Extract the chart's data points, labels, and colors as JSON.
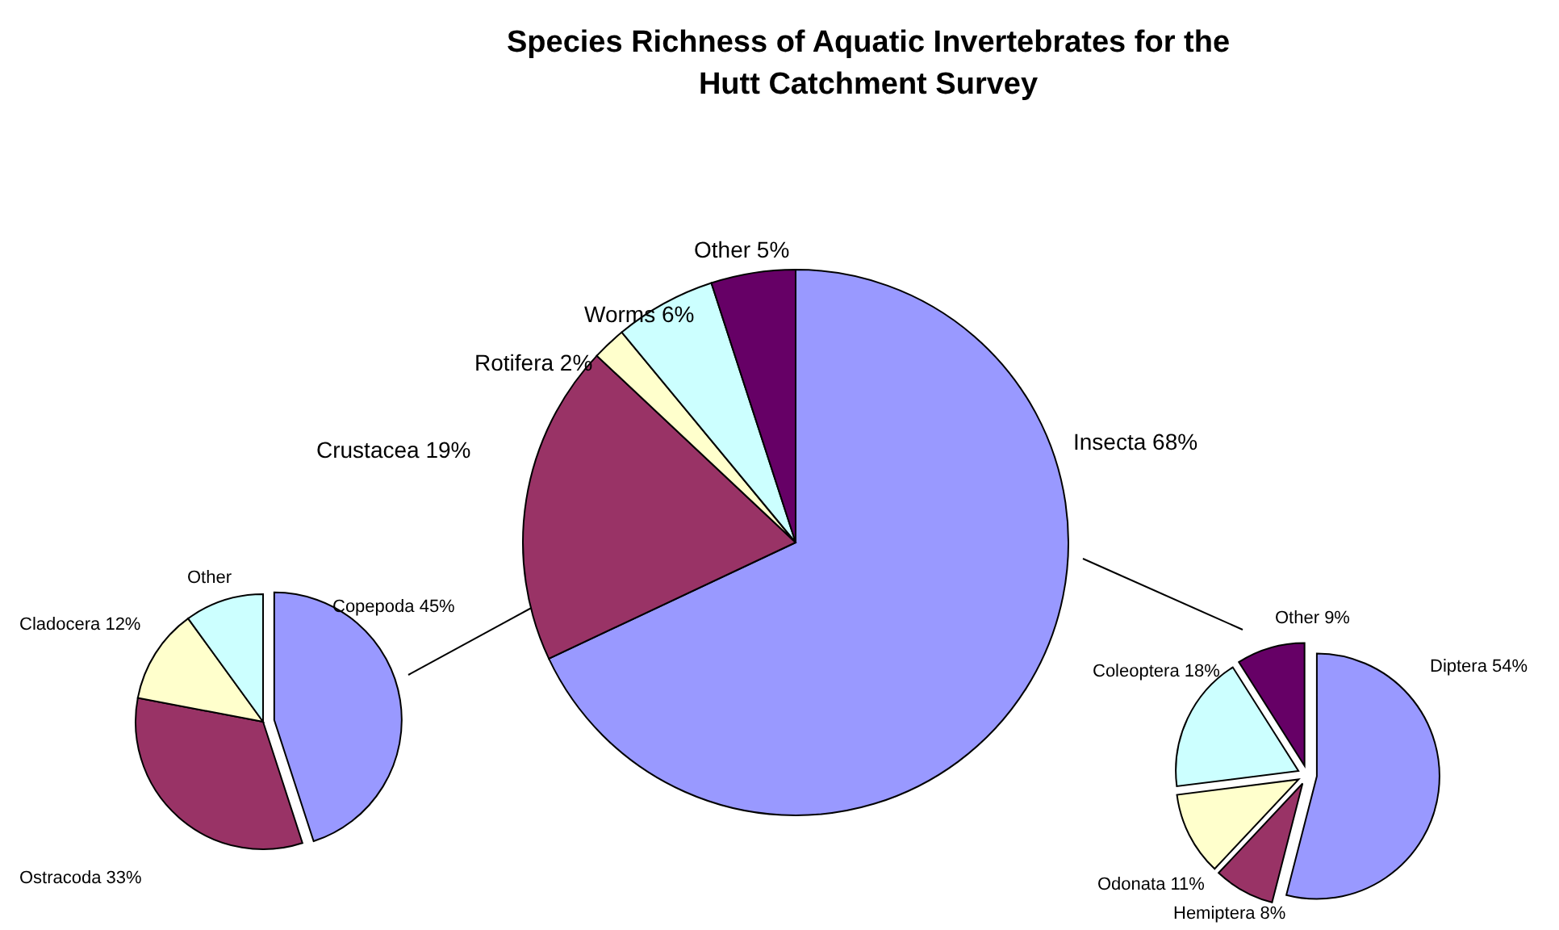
{
  "chart_data": [
    {
      "type": "pie",
      "title": "Species Richness of Aquatic Invertebrates for the Hutt Catchment Survey",
      "categories": [
        "Insecta",
        "Crustacea",
        "Rotifera",
        "Worms",
        "Other"
      ],
      "values": [
        68,
        19,
        2,
        6,
        5
      ],
      "value_labels": [
        "68%",
        "19%",
        "2%",
        "6%",
        "5%"
      ],
      "colors": [
        "#9999ff",
        "#993366",
        "#ffffcc",
        "#ccffff",
        "#660066"
      ]
    },
    {
      "type": "pie",
      "categories": [
        "Copepoda",
        "Ostracoda",
        "Cladocera",
        "Other"
      ],
      "values": [
        45,
        33,
        12,
        10
      ],
      "value_labels": [
        "45%",
        "33%",
        "12%",
        null
      ],
      "colors": [
        "#9999ff",
        "#993366",
        "#ffffcc",
        "#ccffff"
      ]
    },
    {
      "type": "pie",
      "categories": [
        "Diptera",
        "Hemiptera",
        "Odonata",
        "Coleoptera",
        "Other"
      ],
      "values": [
        54,
        8,
        11,
        18,
        9
      ],
      "value_labels": [
        "54%",
        "8%",
        "11%",
        "18%",
        "9%"
      ],
      "colors": [
        "#9999ff",
        "#993366",
        "#ffffcc",
        "#ccffff",
        "#660066"
      ]
    }
  ]
}
